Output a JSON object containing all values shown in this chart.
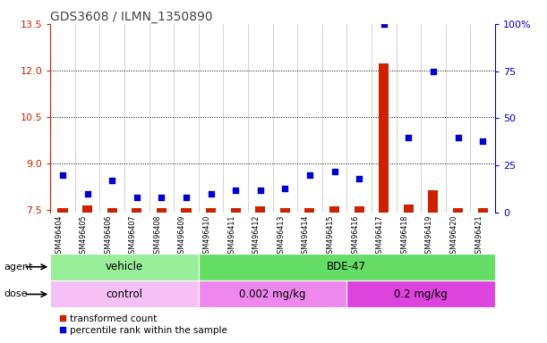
{
  "title": "GDS3608 / ILMN_1350890",
  "samples": [
    "GSM496404",
    "GSM496405",
    "GSM496406",
    "GSM496407",
    "GSM496408",
    "GSM496409",
    "GSM496410",
    "GSM496411",
    "GSM496412",
    "GSM496413",
    "GSM496414",
    "GSM496415",
    "GSM496416",
    "GSM496417",
    "GSM496418",
    "GSM496419",
    "GSM496420",
    "GSM496421"
  ],
  "transformed_count": [
    7.55,
    7.62,
    7.55,
    7.55,
    7.55,
    7.55,
    7.55,
    7.55,
    7.6,
    7.55,
    7.55,
    7.6,
    7.6,
    12.22,
    7.65,
    8.12,
    7.55,
    7.55
  ],
  "percentile_rank": [
    20,
    10,
    17,
    8,
    8,
    8,
    10,
    12,
    12,
    13,
    20,
    22,
    18,
    100,
    40,
    75,
    40,
    38
  ],
  "ylim_left": [
    7.4,
    13.5
  ],
  "ylim_right": [
    0,
    100
  ],
  "yticks_left": [
    7.5,
    9.0,
    10.5,
    12.0,
    13.5
  ],
  "yticks_right": [
    0,
    25,
    50,
    75,
    100
  ],
  "ytick_labels_right": [
    "0",
    "25",
    "50",
    "75",
    "100%"
  ],
  "hlines": [
    9.0,
    10.5,
    12.0
  ],
  "agent_groups": [
    {
      "label": "vehicle",
      "start": 0,
      "end": 6,
      "color": "#99ee99"
    },
    {
      "label": "BDE-47",
      "start": 6,
      "end": 18,
      "color": "#66dd66"
    }
  ],
  "dose_groups": [
    {
      "label": "control",
      "start": 0,
      "end": 6,
      "color": "#f5c0f5"
    },
    {
      "label": "0.002 mg/kg",
      "start": 6,
      "end": 12,
      "color": "#ee88ee"
    },
    {
      "label": "0.2 mg/kg",
      "start": 12,
      "end": 18,
      "color": "#dd44dd"
    }
  ],
  "bar_color": "#cc2200",
  "scatter_color": "#0000cc",
  "legend_red": "transformed count",
  "legend_blue": "percentile rank within the sample",
  "left_tick_color": "#cc2200",
  "right_tick_color": "#0000cc",
  "title_color": "#444444",
  "plot_bg": "#ffffff",
  "xlabel_area_bg": "#cccccc",
  "bar_width": 0.4,
  "scatter_size": 18
}
